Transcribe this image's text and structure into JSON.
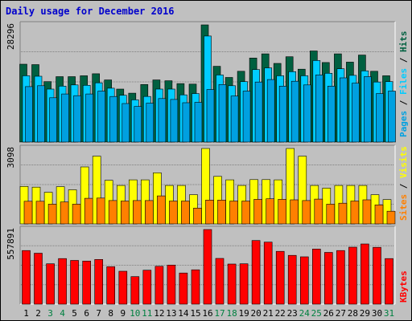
{
  "chart_data": [
    {
      "type": "bar",
      "title": "Daily usage for December 2016",
      "categories": [
        "1",
        "2",
        "3",
        "4",
        "5",
        "6",
        "7",
        "8",
        "9",
        "10",
        "11",
        "12",
        "13",
        "14",
        "15",
        "16",
        "17",
        "18",
        "19",
        "20",
        "21",
        "22",
        "23",
        "24",
        "25",
        "26",
        "27",
        "28",
        "29",
        "30",
        "31"
      ],
      "weekend_days": [
        "3",
        "4",
        "10",
        "11",
        "17",
        "18",
        "24",
        "25",
        "31"
      ],
      "ymax_label": "28296",
      "ylim": [
        0,
        28296
      ],
      "series": [
        {
          "name": "Hits",
          "color": "#006040",
          "values": [
            18800,
            18700,
            14600,
            15800,
            15800,
            16000,
            16500,
            15000,
            12800,
            11800,
            13900,
            15000,
            14800,
            14100,
            14000,
            28300,
            18300,
            15600,
            17100,
            20300,
            21300,
            19000,
            20600,
            17600,
            22000,
            19200,
            21300,
            19300,
            21000,
            17100,
            16000
          ]
        },
        {
          "name": "Files",
          "color": "#00ccff",
          "values": [
            16000,
            15900,
            12800,
            13500,
            13800,
            13700,
            14300,
            13000,
            11300,
            10200,
            11000,
            12800,
            12800,
            11400,
            11700,
            25600,
            16200,
            13600,
            14600,
            17500,
            17900,
            16000,
            17000,
            16000,
            19700,
            16600,
            17700,
            16100,
            17200,
            14500,
            14600
          ]
        },
        {
          "name": "Pages",
          "color": "#00a0e0",
          "values": [
            13400,
            13600,
            10700,
            11600,
            11200,
            11600,
            12300,
            11000,
            9300,
            8600,
            9400,
            10500,
            10300,
            9500,
            9600,
            12700,
            13900,
            11100,
            12300,
            14500,
            15100,
            13500,
            14700,
            13800,
            16200,
            13500,
            15500,
            14200,
            15800,
            11700,
            12300
          ]
        }
      ]
    },
    {
      "type": "bar",
      "ymax_label": "3098",
      "ylim": [
        0,
        3098
      ],
      "series": [
        {
          "name": "Visits",
          "color": "#ffff00",
          "values": [
            1540,
            1510,
            1300,
            1530,
            1400,
            2340,
            2780,
            1790,
            1580,
            1810,
            1810,
            2100,
            1580,
            1580,
            1200,
            3098,
            1950,
            1810,
            1580,
            1820,
            1820,
            1810,
            3098,
            2780,
            1580,
            1470,
            1580,
            1580,
            1580,
            1200,
            1000
          ]
        },
        {
          "name": "Sites",
          "color": "#ff8000",
          "values": [
            930,
            930,
            810,
            900,
            810,
            1050,
            1060,
            960,
            940,
            960,
            960,
            1150,
            940,
            940,
            650,
            980,
            980,
            940,
            940,
            1010,
            1030,
            1010,
            990,
            960,
            1020,
            810,
            850,
            940,
            990,
            780,
            520
          ]
        }
      ]
    },
    {
      "type": "bar",
      "ymax_label": "557891",
      "ylim": [
        0,
        557891
      ],
      "series": [
        {
          "name": "KBytes",
          "color": "#ff0000",
          "values": [
            401000,
            381000,
            302000,
            341000,
            327000,
            322000,
            334000,
            280000,
            246000,
            206000,
            254000,
            283000,
            292000,
            233000,
            257000,
            557891,
            342000,
            300000,
            302000,
            476000,
            464000,
            395000,
            365000,
            354000,
            412000,
            387000,
            401000,
            426000,
            450000,
            425000,
            341000
          ]
        }
      ]
    }
  ]
}
